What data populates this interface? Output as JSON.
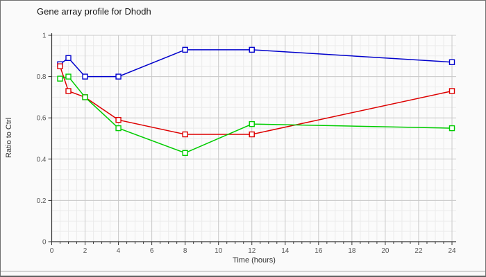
{
  "header": {
    "title": "Gene array profile for Dhodh"
  },
  "axes": {
    "ylabel": "Ratio to Ctrl",
    "xlabel": "Time (hours)"
  },
  "chart_data": {
    "type": "line",
    "title": "Gene array profile for Dhodh",
    "xlabel": "Time (hours)",
    "ylabel": "Ratio to Ctrl",
    "x": [
      0.5,
      1,
      2,
      4,
      8,
      12,
      24
    ],
    "series": [
      {
        "name": "series-blue",
        "color": "#0000cc",
        "values": [
          0.86,
          0.89,
          0.8,
          0.8,
          0.93,
          0.93,
          0.87
        ]
      },
      {
        "name": "series-red",
        "color": "#dd0000",
        "values": [
          0.85,
          0.73,
          0.7,
          0.59,
          0.52,
          0.52,
          0.73
        ]
      },
      {
        "name": "series-green",
        "color": "#00cc00",
        "values": [
          0.79,
          0.8,
          0.7,
          0.55,
          0.43,
          0.57,
          0.55
        ]
      }
    ],
    "xlim": [
      0,
      24
    ],
    "ylim": [
      0,
      1
    ],
    "x_major_ticks": [
      0,
      2,
      4,
      6,
      8,
      10,
      12,
      14,
      16,
      18,
      20,
      22,
      24
    ],
    "x_minor_step": 0.5,
    "y_major_ticks": [
      0,
      0.2,
      0.4,
      0.6,
      0.8,
      1
    ],
    "y_tick_labels": [
      "0",
      "0.2",
      "0.4",
      "0.6",
      "0.8",
      "1"
    ],
    "y_minor_step": 0.05,
    "grid": true,
    "legend": false,
    "marker": "open-square",
    "marker_fill": "#ffffff",
    "colors": {
      "plot_background": "#fbfbfb",
      "grid_minor": "#ebebeb",
      "grid_major": "#c8c8c8",
      "axis_line": "#333333",
      "tick_label": "#555555"
    }
  }
}
